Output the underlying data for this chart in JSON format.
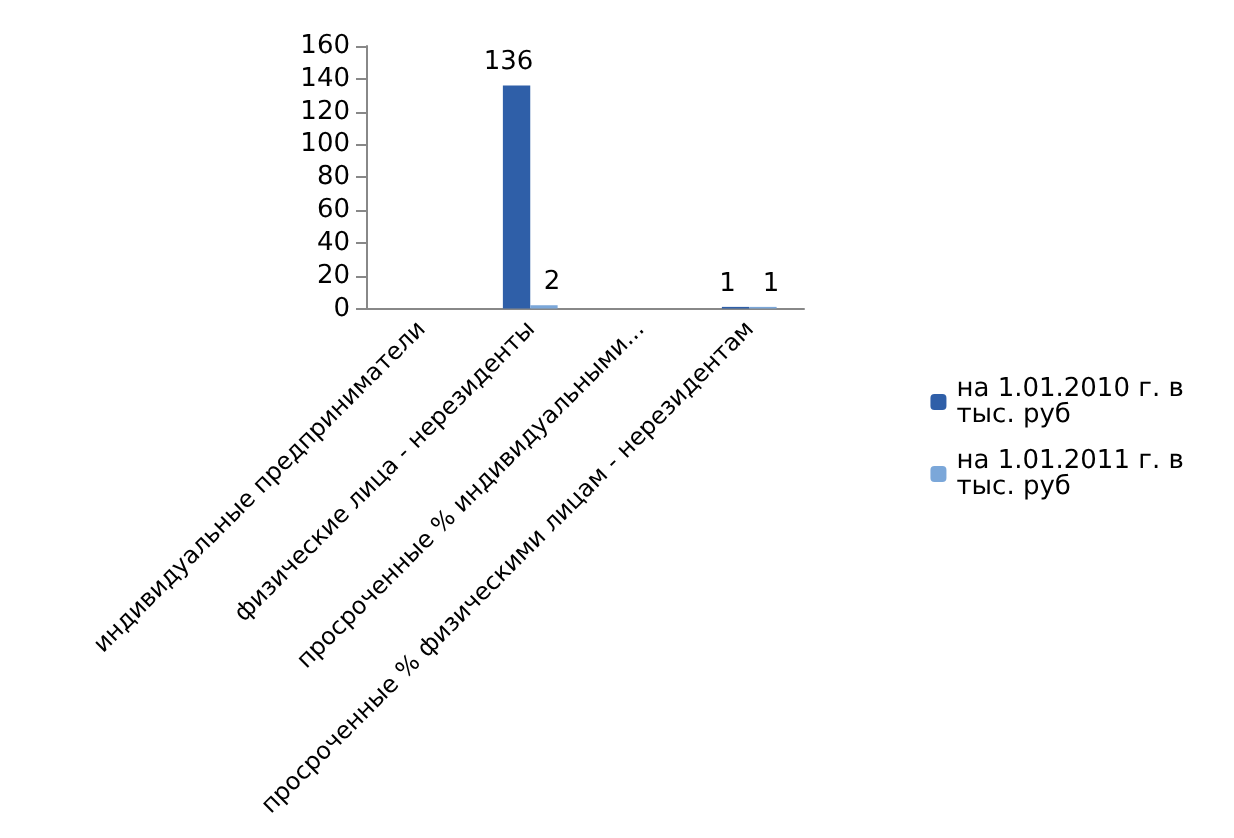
{
  "chart_data": {
    "type": "bar",
    "categories": [
      "индивидуальные предприниматели",
      "физические лица - нерезиденты",
      "просроченные % индивидуальными...",
      "просроченные % физическими лицам - нерезидентам"
    ],
    "series": [
      {
        "name": "на 1.01.2010 г. в тыс. руб",
        "color": "#2f5fa8",
        "values": [
          null,
          136,
          null,
          1
        ]
      },
      {
        "name": "на 1.01.2011 г. в тыс. руб",
        "color": "#7ba7d9",
        "values": [
          null,
          2,
          null,
          1
        ]
      }
    ],
    "ylim": [
      0,
      160
    ],
    "yticks": [
      0,
      20,
      40,
      60,
      80,
      100,
      120,
      140,
      160
    ],
    "grid": false,
    "legend": "right",
    "data_labels": true
  }
}
